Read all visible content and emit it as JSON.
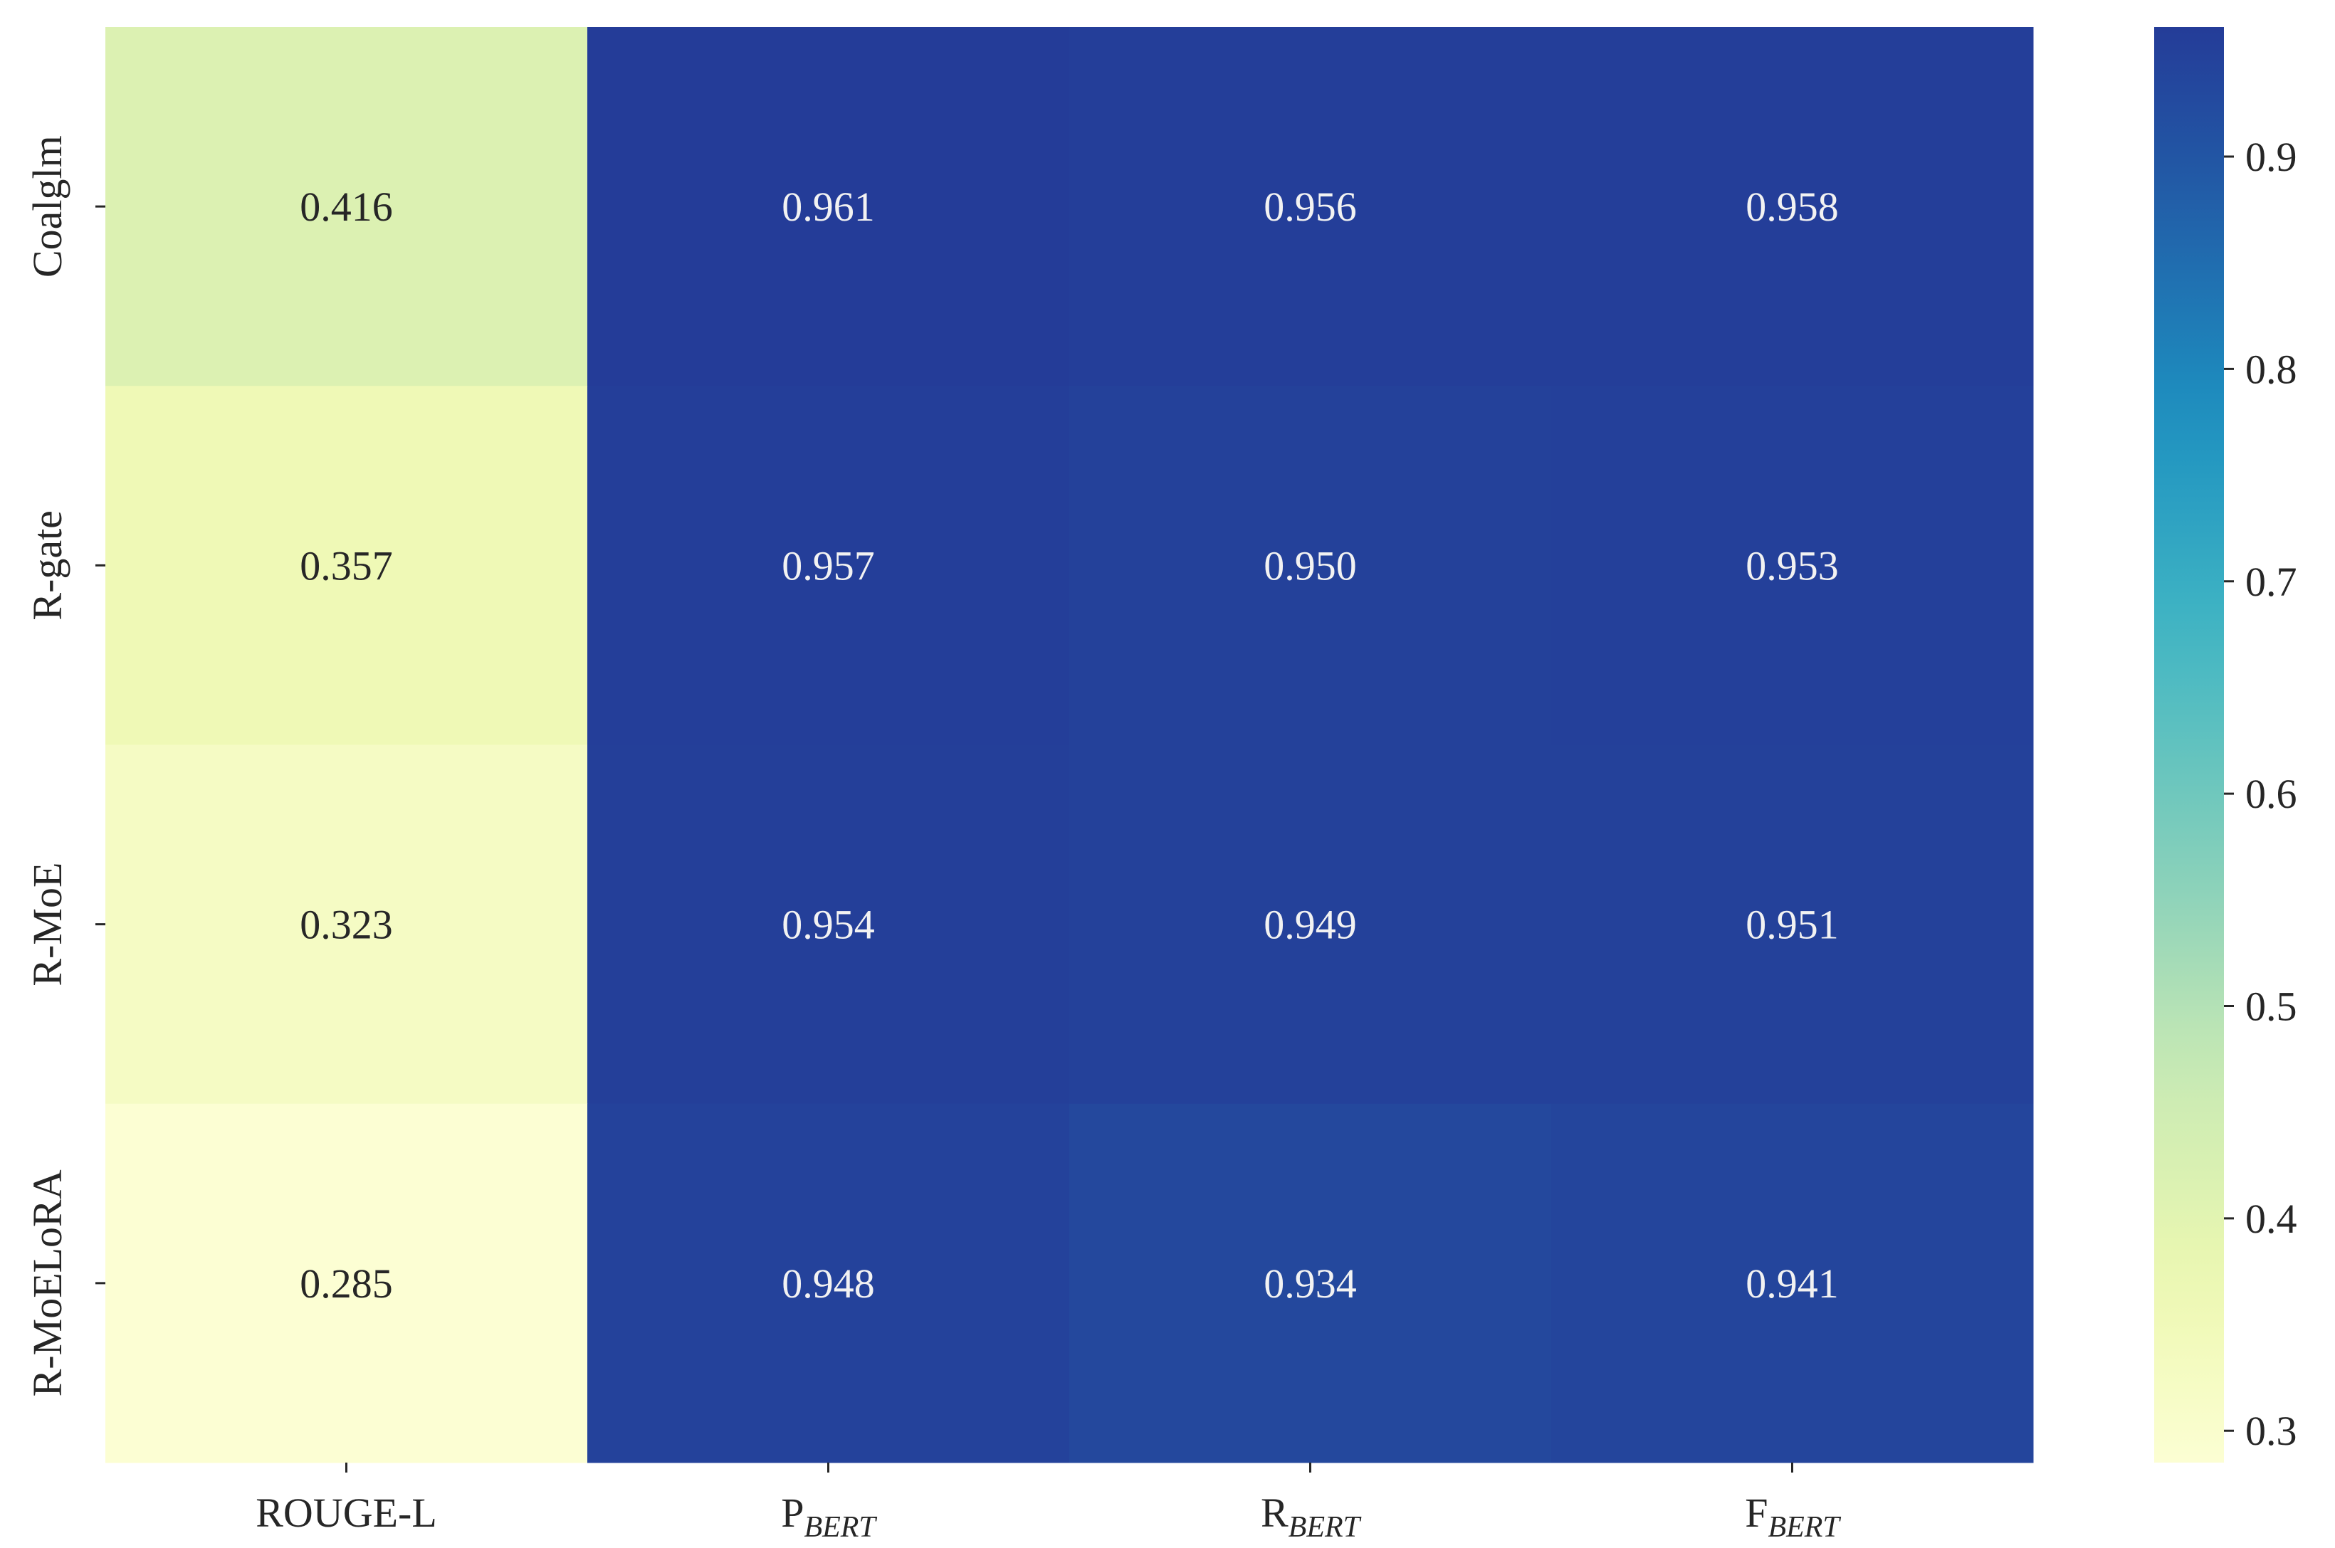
{
  "chart_data": {
    "type": "heatmap",
    "title": "",
    "xlabel": "",
    "ylabel": "",
    "columns": [
      {
        "label": "ROUGE-L",
        "sub": ""
      },
      {
        "label": "P",
        "sub": "BERT"
      },
      {
        "label": "R",
        "sub": "BERT"
      },
      {
        "label": "F",
        "sub": "BERT"
      }
    ],
    "rows": [
      "Coalglm",
      "R-gate",
      "R-MoE",
      "R-MoELoRA"
    ],
    "values": [
      [
        0.416,
        0.961,
        0.956,
        0.958
      ],
      [
        0.357,
        0.957,
        0.95,
        0.953
      ],
      [
        0.323,
        0.954,
        0.949,
        0.951
      ],
      [
        0.285,
        0.948,
        0.934,
        0.941
      ]
    ],
    "value_format": "3 decimals",
    "colormap": "YlGnBu",
    "colorbar": {
      "range": [
        0.285,
        0.961
      ],
      "ticks": [
        0.3,
        0.4,
        0.5,
        0.6,
        0.7,
        0.8,
        0.9
      ],
      "tick_labels": [
        "0.3",
        "0.4",
        "0.5",
        "0.6",
        "0.7",
        "0.8",
        "0.9"
      ]
    },
    "colors": {
      "light_text": "#f2f2f2",
      "dark_text": "#262626",
      "axis": "#262626"
    }
  }
}
